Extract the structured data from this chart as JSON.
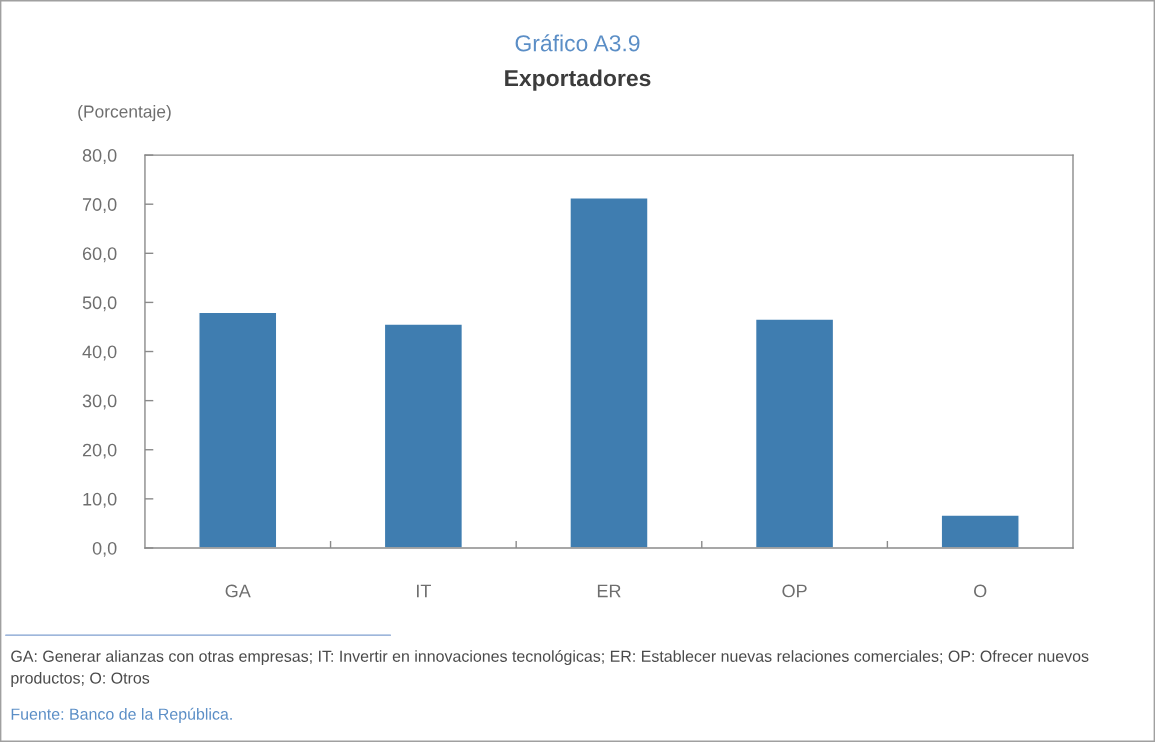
{
  "chart_data": {
    "type": "bar",
    "title": "Gráfico A3.9",
    "subtitle": "Exportadores",
    "ylabel": "(Porcentaje)",
    "categories": [
      "GA",
      "IT",
      "ER",
      "OP",
      "O"
    ],
    "values": [
      48.0,
      45.6,
      71.3,
      46.6,
      6.7
    ],
    "color": "#3f7db0",
    "ylim": [
      0,
      80
    ],
    "yticks": [
      {
        "value": 0,
        "label": "0,0"
      },
      {
        "value": 10,
        "label": "10,0"
      },
      {
        "value": 20,
        "label": "20,0"
      },
      {
        "value": 30,
        "label": "30,0"
      },
      {
        "value": 40,
        "label": "40,0"
      },
      {
        "value": 50,
        "label": "50,0"
      },
      {
        "value": 60,
        "label": "60,0"
      },
      {
        "value": 70,
        "label": "70,0"
      },
      {
        "value": 80,
        "label": "80,0"
      }
    ],
    "annotations": [
      "GA: Generar alianzas con otras empresas; IT: Invertir en innovaciones tecnológicas; ER: Establecer nuevas relaciones comerciales; OP: Ofrecer nuevos productos; O: Otros",
      "Fuente: Banco de la República."
    ]
  }
}
